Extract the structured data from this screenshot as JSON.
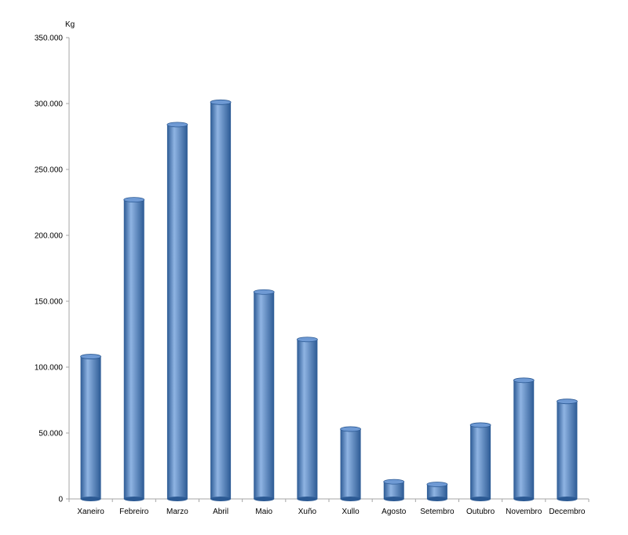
{
  "chart_data": {
    "type": "bar",
    "title": "",
    "xlabel": "",
    "ylabel": "Kg",
    "ylim": [
      0,
      350000
    ],
    "yticks": [
      0,
      50000,
      100000,
      150000,
      200000,
      250000,
      300000,
      350000
    ],
    "ytick_labels": [
      "0",
      "50.000",
      "100.000",
      "150.000",
      "200.000",
      "250.000",
      "300.000",
      "350.000"
    ],
    "categories": [
      "Xaneiro",
      "Febreiro",
      "Marzo",
      "Abril",
      "Maio",
      "Xuño",
      "Xullo",
      "Agosto",
      "Setembro",
      "Outubro",
      "Novembro",
      "Decembro"
    ],
    "values": [
      108000,
      227000,
      284000,
      301000,
      157000,
      121000,
      53000,
      13000,
      11000,
      56000,
      90000,
      74000
    ],
    "grid": false,
    "legend": "none",
    "bar_style": "3d-cylinder",
    "colors": {
      "bar": "#4a7ebb",
      "bar_light": "#8fb4e3",
      "bar_dark": "#2c5a94",
      "top": "#6f9ad4",
      "axis": "#a6a6a6"
    }
  }
}
